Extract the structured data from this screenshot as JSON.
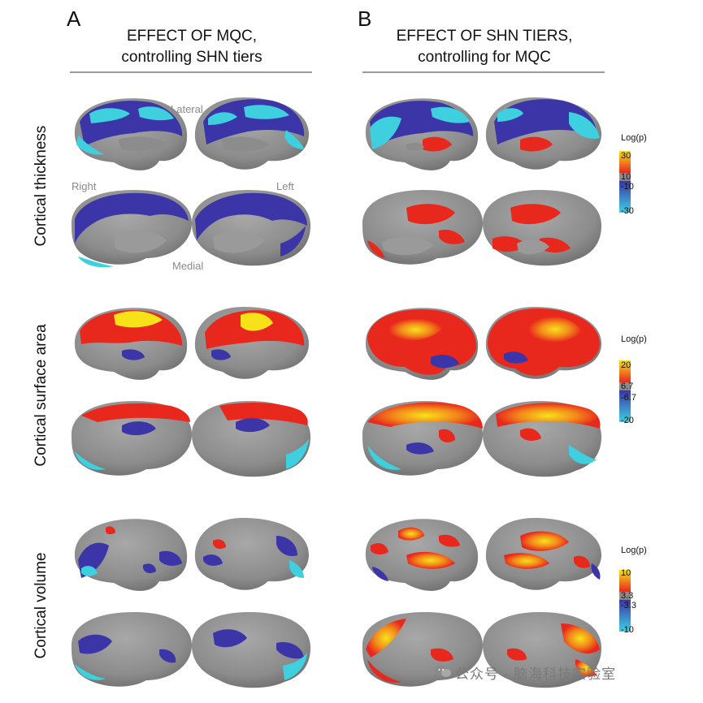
{
  "panels": [
    {
      "letter": "A",
      "title_line1": "EFFECT OF MQC,",
      "title_line2": "controlling SHN tiers"
    },
    {
      "letter": "B",
      "title_line1": "EFFECT OF SHN TIERS,",
      "title_line2": "controlling for MQC"
    }
  ],
  "rows": [
    {
      "label": "Cortical thickness"
    },
    {
      "label": "Cortical surface area"
    },
    {
      "label": "Cortical volume"
    }
  ],
  "view_labels": {
    "lateral": "Lateral",
    "medial": "Medial",
    "right": "Right",
    "left": "Left"
  },
  "colorbars": [
    {
      "title": "Log(p)",
      "ticks": [
        "30",
        "10",
        "-10",
        "-30"
      ]
    },
    {
      "title": "Log(p)",
      "ticks": [
        "20",
        "6.7",
        "-6.7",
        "-20"
      ]
    },
    {
      "title": "Log(p)",
      "ticks": [
        "10",
        "3.3",
        "-3.3",
        "-10"
      ]
    }
  ],
  "colors": {
    "positive_high": "#f7e21a",
    "positive_low": "#e8281c",
    "neutral": "#8c8c8c",
    "negative_low": "#3b35a8",
    "negative_high": "#3fd0e0"
  },
  "watermark": "公众号 · 脑海科技实验室"
}
